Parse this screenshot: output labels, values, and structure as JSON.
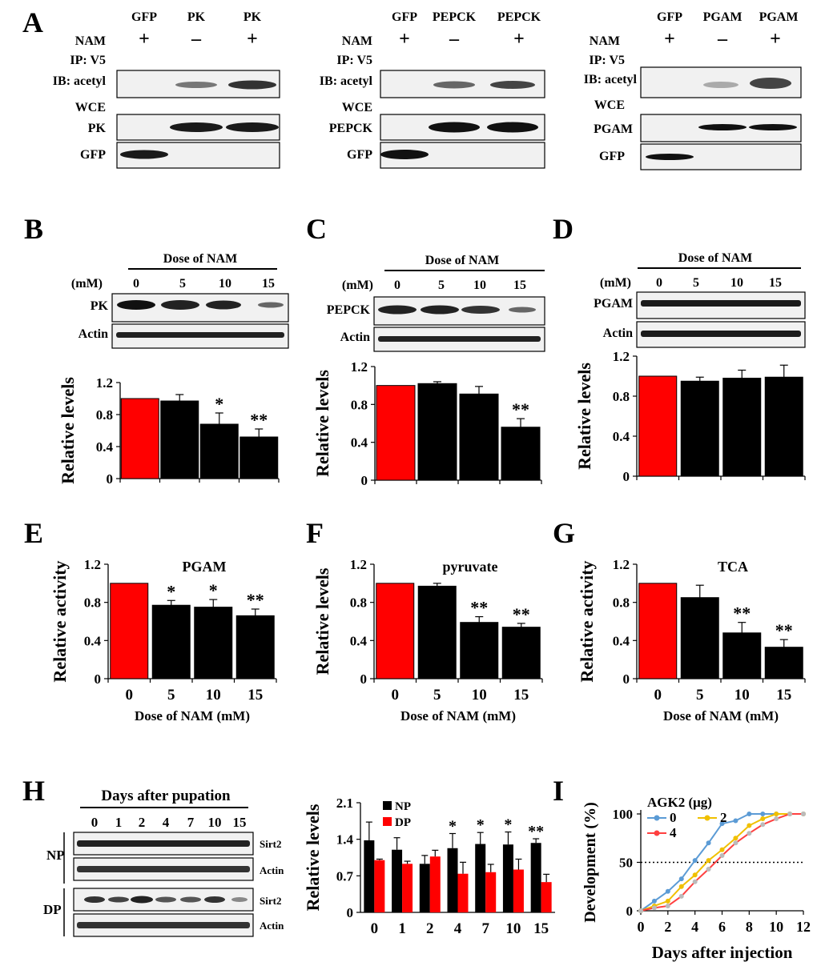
{
  "panel_labels": [
    "A",
    "B",
    "C",
    "D",
    "E",
    "F",
    "G",
    "H",
    "I"
  ],
  "panel_a": {
    "row_labels": {
      "nam": "NAM",
      "ip": "IP: V5",
      "ib": "IB: acetyl",
      "wce": "WCE",
      "gfp": "GFP"
    },
    "blots": [
      {
        "cols": [
          "GFP",
          "PK",
          "PK"
        ],
        "nam": [
          "+",
          "–",
          "+"
        ],
        "protein": "PK"
      },
      {
        "cols": [
          "GFP",
          "PEPCK",
          "PEPCK"
        ],
        "nam": [
          "+",
          "–",
          "+"
        ],
        "protein": "PEPCK"
      },
      {
        "cols": [
          "GFP",
          "PGAM",
          "PGAM"
        ],
        "nam": [
          "+",
          "–",
          "+"
        ],
        "protein": "PGAM"
      }
    ]
  },
  "dose_blots": {
    "title": "Dose of NAM",
    "unit": "(mM)",
    "doses": [
      "0",
      "5",
      "10",
      "15"
    ],
    "loading": "Actin",
    "proteins": [
      "PK",
      "PEPCK",
      "PGAM"
    ]
  },
  "panel_h_blot": {
    "title": "Days after pupation",
    "days": [
      "0",
      "1",
      "2",
      "4",
      "7",
      "10",
      "15"
    ],
    "groups": [
      "NP",
      "DP"
    ],
    "rows": [
      "Sirt2",
      "Actin"
    ]
  },
  "chart_data": [
    {
      "id": "B",
      "type": "bar",
      "categories": [
        "0",
        "5",
        "10",
        "15"
      ],
      "values": [
        1.0,
        0.97,
        0.68,
        0.52
      ],
      "errors": [
        0,
        0.08,
        0.14,
        0.1
      ],
      "sig": [
        "",
        "",
        "*",
        "**"
      ],
      "ylabel": "Relative levels",
      "xlabel": "",
      "ylim": [
        0,
        1.2
      ],
      "yticks": [
        "0",
        "0.4",
        "0.8",
        "1.2"
      ],
      "title": ""
    },
    {
      "id": "C",
      "type": "bar",
      "categories": [
        "0",
        "5",
        "10",
        "15"
      ],
      "values": [
        1.0,
        1.02,
        0.91,
        0.56
      ],
      "errors": [
        0,
        0.02,
        0.08,
        0.09
      ],
      "sig": [
        "",
        "",
        "",
        "**"
      ],
      "ylabel": "Relative levels",
      "xlabel": "",
      "ylim": [
        0,
        1.2
      ],
      "yticks": [
        "0",
        "0.4",
        "0.8",
        "1.2"
      ],
      "title": ""
    },
    {
      "id": "D",
      "type": "bar",
      "categories": [
        "0",
        "5",
        "10",
        "15"
      ],
      "values": [
        1.0,
        0.95,
        0.98,
        0.99
      ],
      "errors": [
        0,
        0.04,
        0.08,
        0.12
      ],
      "sig": [
        "",
        "",
        "",
        ""
      ],
      "ylabel": "Relative levels",
      "xlabel": "",
      "ylim": [
        0,
        1.2
      ],
      "yticks": [
        "0",
        "0.4",
        "0.8",
        "1.2"
      ],
      "title": ""
    },
    {
      "id": "E",
      "type": "bar",
      "categories": [
        "0",
        "5",
        "10",
        "15"
      ],
      "values": [
        1.0,
        0.77,
        0.75,
        0.66
      ],
      "errors": [
        0,
        0.05,
        0.08,
        0.07
      ],
      "sig": [
        "",
        "*",
        "*",
        "**"
      ],
      "ylabel": "Relative activity",
      "xlabel": "Dose of NAM (mM)",
      "ylim": [
        0,
        1.2
      ],
      "yticks": [
        "0",
        "0.4",
        "0.8",
        "1.2"
      ],
      "title": "PGAM"
    },
    {
      "id": "F",
      "type": "bar",
      "categories": [
        "0",
        "5",
        "10",
        "15"
      ],
      "values": [
        1.0,
        0.97,
        0.59,
        0.54
      ],
      "errors": [
        0,
        0.03,
        0.06,
        0.04
      ],
      "sig": [
        "",
        "",
        "**",
        "**"
      ],
      "ylabel": "Relative levels",
      "xlabel": "Dose of NAM (mM)",
      "ylim": [
        0,
        1.2
      ],
      "yticks": [
        "0",
        "0.4",
        "0.8",
        "1.2"
      ],
      "title": "pyruvate"
    },
    {
      "id": "G",
      "type": "bar",
      "categories": [
        "0",
        "5",
        "10",
        "15"
      ],
      "values": [
        1.0,
        0.85,
        0.48,
        0.33
      ],
      "errors": [
        0,
        0.13,
        0.11,
        0.08
      ],
      "sig": [
        "",
        "",
        "**",
        "**"
      ],
      "ylabel": "Relative activity",
      "xlabel": "Dose of NAM (mM)",
      "ylim": [
        0,
        1.2
      ],
      "yticks": [
        "0",
        "0.4",
        "0.8",
        "1.2"
      ],
      "title": "TCA"
    },
    {
      "id": "H",
      "type": "bar",
      "categories": [
        "0",
        "1",
        "2",
        "4",
        "7",
        "10",
        "15"
      ],
      "series": [
        {
          "name": "NP",
          "color": "#000000",
          "values": [
            1.38,
            1.2,
            0.93,
            1.23,
            1.31,
            1.3,
            1.33
          ],
          "errors": [
            0.35,
            0.23,
            0.16,
            0.28,
            0.22,
            0.24,
            0.08
          ]
        },
        {
          "name": "DP",
          "color": "#ff0000",
          "values": [
            1.0,
            0.93,
            1.07,
            0.74,
            0.77,
            0.82,
            0.58
          ],
          "errors": [
            0.02,
            0.05,
            0.12,
            0.22,
            0.15,
            0.2,
            0.15
          ]
        }
      ],
      "sig": [
        "",
        "",
        "",
        "*",
        "*",
        "*",
        "**"
      ],
      "ylabel": "Relative levels",
      "xlabel": "",
      "ylim": [
        0,
        2.1
      ],
      "yticks": [
        "0",
        "0.7",
        "1.4",
        "2.1"
      ],
      "legend": "top-left"
    },
    {
      "id": "I",
      "type": "line",
      "x": [
        0,
        1,
        2,
        3,
        4,
        5,
        6,
        7,
        8,
        9,
        10,
        11,
        12
      ],
      "series": [
        {
          "name": "0",
          "color": "#5b9bd5",
          "values": [
            0,
            10,
            20,
            33,
            52,
            70,
            90,
            93,
            100,
            100,
            100,
            100,
            100
          ]
        },
        {
          "name": "2",
          "color": "#f0c000",
          "values": [
            0,
            5,
            10,
            25,
            37,
            52,
            63,
            75,
            88,
            95,
            100,
            100,
            100
          ]
        },
        {
          "name": "4",
          "color": "#ff4040",
          "values": [
            0,
            3,
            5,
            15,
            30,
            43,
            57,
            70,
            80,
            89,
            95,
            100,
            100
          ]
        }
      ],
      "legend_title": "AGK2 (μg)",
      "ylabel": "Development (%)",
      "xlabel": "Days after injection",
      "xlim": [
        0,
        12
      ],
      "ylim": [
        0,
        100
      ],
      "xticks": [
        "0",
        "2",
        "4",
        "6",
        "8",
        "10",
        "12"
      ],
      "yticks": [
        "0",
        "50",
        "100"
      ],
      "reference_line": 50
    }
  ]
}
